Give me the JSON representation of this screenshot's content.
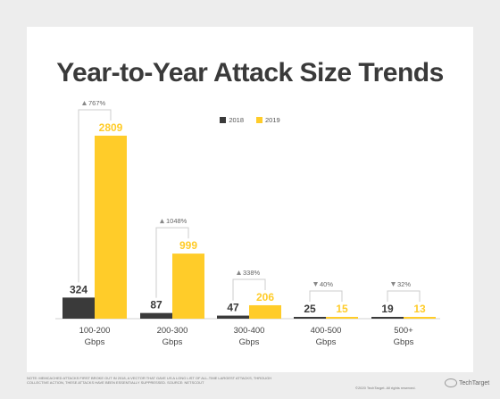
{
  "chart_data": {
    "type": "bar",
    "title": "Year-to-Year Attack Size Trends",
    "categories": [
      "100-200 Gbps",
      "200-300 Gbps",
      "300-400 Gbps",
      "400-500 Gbps",
      "500+ Gbps"
    ],
    "category_lines": [
      [
        "100-200",
        "Gbps"
      ],
      [
        "200-300",
        "Gbps"
      ],
      [
        "300-400",
        "Gbps"
      ],
      [
        "400-500",
        "Gbps"
      ],
      [
        "500+",
        "Gbps"
      ]
    ],
    "series": [
      {
        "name": "2018",
        "values": [
          324,
          87,
          47,
          25,
          19
        ],
        "color": "#3a3a3a"
      },
      {
        "name": "2019",
        "values": [
          2809,
          999,
          206,
          15,
          13
        ],
        "color": "#ffcc29"
      }
    ],
    "changes": [
      {
        "label": "767%",
        "direction": "up"
      },
      {
        "label": "1048%",
        "direction": "up"
      },
      {
        "label": "338%",
        "direction": "up"
      },
      {
        "label": "40%",
        "direction": "down"
      },
      {
        "label": "32%",
        "direction": "down"
      }
    ],
    "ylim": [
      0,
      2809
    ],
    "grid": false,
    "legend_position": "top-center"
  },
  "note": "Note: Memcached attacks first broke out in 2018, a vector that gave us a long list of all-time largest attacks, through collective action, these attacks have been essentially suppressed. Source: Netscout",
  "copyright": "©2020 TechTarget. All rights reserved.",
  "brand": "TechTarget",
  "colors": {
    "year2018": "#3a3a3a",
    "year2019": "#ffcc29",
    "annotation": "#cccccc",
    "label_2018": "#3a3a3a",
    "label_2019": "#ffcc29"
  }
}
